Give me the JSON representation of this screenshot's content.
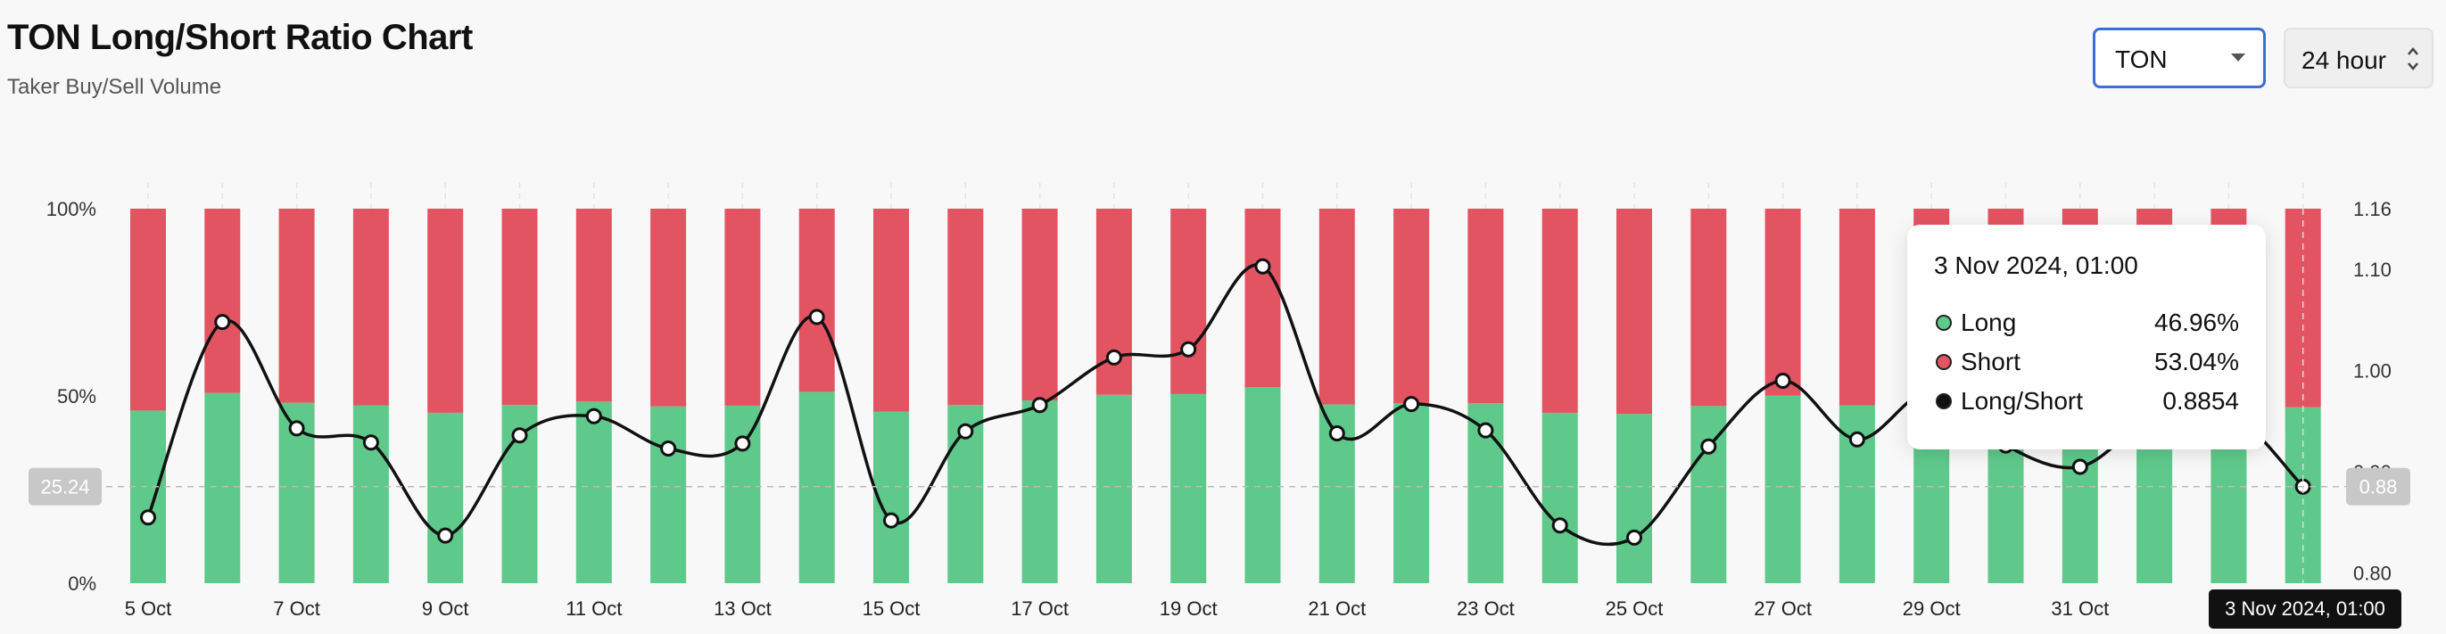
{
  "header": {
    "title": "TON Long/Short Ratio Chart",
    "subtitle": "Taker Buy/Sell Volume"
  },
  "controls": {
    "symbol": "TON",
    "period": "24 hour"
  },
  "colors": {
    "long": "#5ec98a",
    "short": "#e35462",
    "ratio_line": "#111111",
    "selector_border": "#3a6fd8"
  },
  "crosshair": {
    "left_label": "25.24",
    "right_label": "0.88",
    "date_label": "3 Nov 2024, 01:00"
  },
  "tooltip": {
    "date": "3 Nov 2024, 01:00",
    "rows": [
      {
        "label": "Long",
        "value": "46.96%",
        "color": "#5ec98a"
      },
      {
        "label": "Short",
        "value": "53.04%",
        "color": "#e35462"
      },
      {
        "label": "Long/Short",
        "value": "0.8854",
        "color": "#111111"
      }
    ]
  },
  "chart_data": {
    "type": "bar",
    "stacked": true,
    "categories": [
      "5 Oct",
      "6 Oct",
      "7 Oct",
      "8 Oct",
      "9 Oct",
      "10 Oct",
      "11 Oct",
      "12 Oct",
      "13 Oct",
      "14 Oct",
      "15 Oct",
      "16 Oct",
      "17 Oct",
      "18 Oct",
      "19 Oct",
      "20 Oct",
      "21 Oct",
      "22 Oct",
      "23 Oct",
      "24 Oct",
      "25 Oct",
      "26 Oct",
      "27 Oct",
      "28 Oct",
      "29 Oct",
      "30 Oct",
      "31 Oct",
      "1 Nov",
      "2 Nov",
      "3 Nov"
    ],
    "x_tick_labels": [
      "5 Oct",
      "7 Oct",
      "9 Oct",
      "11 Oct",
      "13 Oct",
      "15 Oct",
      "17 Oct",
      "19 Oct",
      "21 Oct",
      "23 Oct",
      "25 Oct",
      "27 Oct",
      "29 Oct",
      "31 Oct"
    ],
    "series": [
      {
        "name": "Long",
        "axis": "left",
        "values": [
          46.1,
          50.8,
          48.2,
          47.5,
          45.5,
          47.6,
          48.5,
          47.2,
          47.4,
          51.1,
          45.8,
          47.6,
          48.8,
          50.3,
          50.5,
          52.3,
          47.7,
          48.1,
          48.1,
          45.5,
          45.2,
          47.3,
          50.1,
          47.5,
          48.6,
          48.3,
          48.4,
          48.3,
          48.4,
          46.96
        ]
      },
      {
        "name": "Short",
        "axis": "left",
        "values": [
          53.9,
          49.2,
          51.8,
          52.5,
          54.5,
          52.4,
          51.5,
          52.8,
          52.6,
          48.9,
          54.2,
          52.4,
          51.2,
          49.7,
          49.5,
          47.7,
          52.3,
          51.9,
          51.9,
          54.5,
          54.8,
          52.7,
          49.9,
          52.5,
          51.4,
          51.7,
          51.6,
          51.7,
          51.6,
          53.04
        ]
      },
      {
        "name": "Long/Short",
        "axis": "right",
        "type": "line",
        "values": [
          0.855,
          1.048,
          0.943,
          0.929,
          0.837,
          0.936,
          0.955,
          0.923,
          0.928,
          1.053,
          0.852,
          0.94,
          0.966,
          1.013,
          1.021,
          1.103,
          0.938,
          0.967,
          0.941,
          0.847,
          0.835,
          0.925,
          0.99,
          0.932,
          0.98,
          0.926,
          0.905,
          0.955,
          0.96,
          0.8854
        ]
      }
    ],
    "left_axis": {
      "ticks": [
        "0%",
        "50%",
        "100%"
      ],
      "ylim": [
        0,
        100
      ]
    },
    "right_axis": {
      "ticks": [
        "0.80",
        "0.90",
        "1.00",
        "1.10",
        "1.16"
      ],
      "ylim": [
        0.79,
        1.16
      ]
    },
    "grid": "vertical dashed",
    "legend": "none"
  }
}
